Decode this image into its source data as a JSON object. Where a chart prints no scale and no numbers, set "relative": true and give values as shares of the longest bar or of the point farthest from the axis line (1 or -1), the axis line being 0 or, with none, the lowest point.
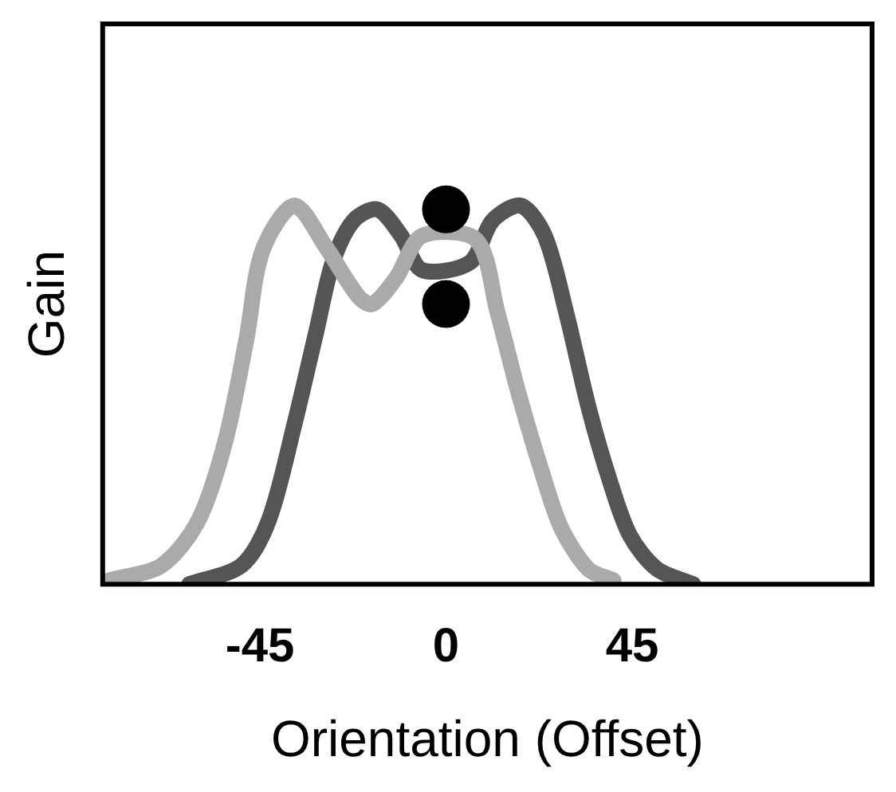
{
  "chart_data": {
    "type": "line",
    "xlabel": "Orientation (Offset)",
    "ylabel": "Gain",
    "relative": true,
    "xlim": [
      -83,
      103
    ],
    "xticks": [
      -45,
      0,
      45
    ],
    "grid": false,
    "legend": false,
    "marker": "none",
    "line_style": "solid",
    "series": [
      {
        "color": "#555555",
        "x": [
          -62.1,
          -49.4,
          -42.8,
          -36.7,
          -31.3,
          -27.4,
          -22.4,
          -16.6,
          -10.8,
          -5.8,
          0,
          5.8,
          11.2,
          18.1,
          23.9,
          29,
          34.4,
          39.4,
          44.4,
          51,
          59.8
        ],
        "values": [
          0,
          0.05,
          0.17,
          0.42,
          0.67,
          0.85,
          0.96,
          0.99,
          0.92,
          0.83,
          null,
          0.85,
          0.96,
          1.0,
          0.92,
          0.72,
          0.47,
          0.28,
          0.13,
          0.04,
          0
        ]
      },
      {
        "color": "#aaaaaa",
        "x": [
          -81.4,
          -68.7,
          -59.8,
          -53.3,
          -48.2,
          -44.4,
          -36.7,
          -29,
          -21.2,
          -17.8,
          -12,
          -5.8,
          0,
          7.3,
          12.4,
          17.4,
          22.8,
          27.8,
          34.4,
          40.5
        ],
        "values": [
          0.01,
          0.05,
          0.17,
          0.38,
          0.65,
          0.88,
          1.0,
          0.89,
          0.76,
          0.74,
          0.81,
          0.92,
          null,
          0.91,
          0.72,
          0.51,
          0.31,
          0.15,
          0.04,
          0.01
        ]
      },
      {
        "type": "scatter",
        "color": "#000000",
        "marker": "circle",
        "x": [
          0,
          0
        ],
        "values": [
          0.99,
          0.74
        ]
      }
    ]
  }
}
